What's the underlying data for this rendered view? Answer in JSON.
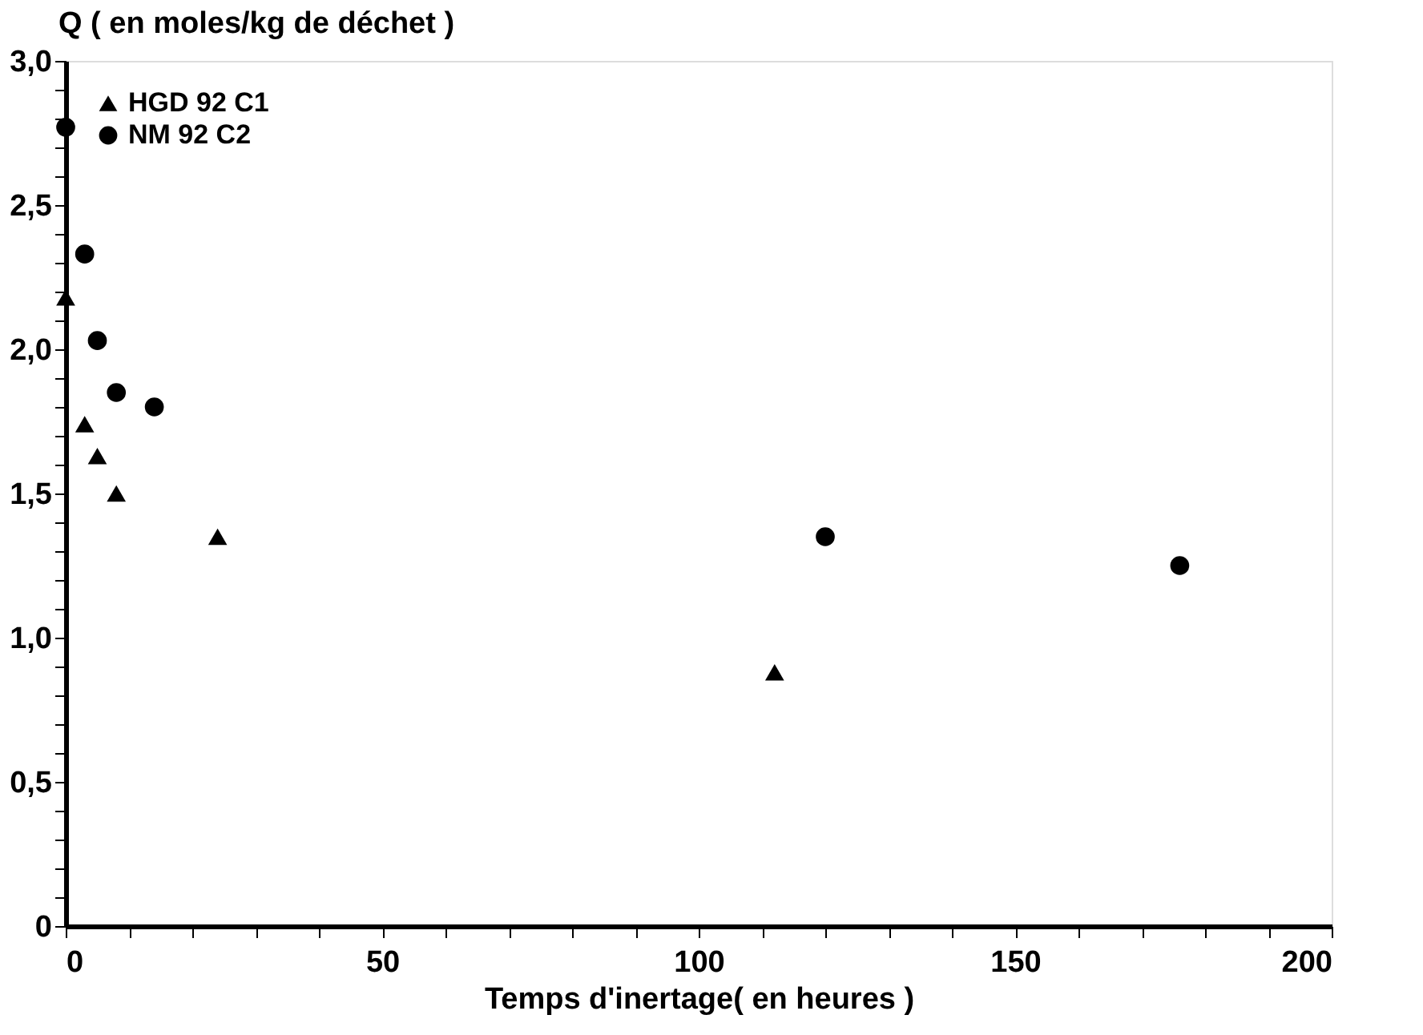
{
  "chart_data": {
    "type": "scatter",
    "xlabel": "Temps d'inertage( en heures )",
    "ylabel": "Q ( en moles/kg de déchet )",
    "series": [
      {
        "name": "HGD 92 C1",
        "color": "#000000",
        "marker": "triangle",
        "x": [
          0,
          3,
          5,
          8,
          24,
          112
        ],
        "values": [
          2.18,
          1.74,
          1.63,
          1.5,
          1.35,
          0.88
        ]
      },
      {
        "name": "NM 92 C2",
        "color": "#000000",
        "marker": "circle",
        "x": [
          0,
          3,
          5,
          8,
          14,
          120,
          176
        ],
        "values": [
          2.77,
          2.33,
          2.03,
          1.85,
          1.8,
          1.35,
          1.25
        ]
      }
    ],
    "xlim": [
      0,
      200
    ],
    "ylim": [
      0,
      3
    ],
    "xticks": [
      0,
      {
        "value": 10,
        "label": null
      },
      {
        "value": 20,
        "label": null
      },
      {
        "value": 30,
        "label": null
      },
      {
        "value": 40,
        "label": null
      },
      50,
      {
        "value": 60,
        "label": null
      },
      {
        "value": 70,
        "label": null
      },
      {
        "value": 80,
        "label": null
      },
      {
        "value": 90,
        "label": null
      },
      100,
      {
        "value": 110,
        "label": null
      },
      {
        "value": 120,
        "label": null
      },
      {
        "value": 130,
        "label": null
      },
      {
        "value": 140,
        "label": null
      },
      150,
      {
        "value": 160,
        "label": null
      },
      {
        "value": 170,
        "label": null
      },
      {
        "value": 180,
        "label": null
      },
      {
        "value": 190,
        "label": null
      },
      200
    ],
    "yticks": [
      0,
      {
        "value": 0.1,
        "label": null
      },
      {
        "value": 0.2,
        "label": null
      },
      {
        "value": 0.3,
        "label": null
      },
      {
        "value": 0.4,
        "label": null
      },
      {
        "value": 0.5,
        "label": "0,5"
      },
      {
        "value": 0.6,
        "label": null
      },
      {
        "value": 0.7,
        "label": null
      },
      {
        "value": 0.8,
        "label": null
      },
      {
        "value": 0.9,
        "label": null
      },
      {
        "value": 1.0,
        "label": "1,0"
      },
      {
        "value": 1.1,
        "label": null
      },
      {
        "value": 1.2,
        "label": null
      },
      {
        "value": 1.3,
        "label": null
      },
      {
        "value": 1.4,
        "label": null
      },
      {
        "value": 1.5,
        "label": "1,5"
      },
      {
        "value": 1.6,
        "label": null
      },
      {
        "value": 1.7,
        "label": null
      },
      {
        "value": 1.8,
        "label": null
      },
      {
        "value": 1.9,
        "label": null
      },
      {
        "value": 2.0,
        "label": "2,0"
      },
      {
        "value": 2.1,
        "label": null
      },
      {
        "value": 2.2,
        "label": null
      },
      {
        "value": 2.3,
        "label": null
      },
      {
        "value": 2.4,
        "label": null
      },
      {
        "value": 2.5,
        "label": "2,5"
      },
      {
        "value": 2.6,
        "label": null
      },
      {
        "value": 2.7,
        "label": null
      },
      {
        "value": 2.8,
        "label": null
      },
      {
        "value": 2.9,
        "label": null
      },
      {
        "value": 3.0,
        "label": "3,0"
      }
    ],
    "grid": false,
    "legend": "top left"
  }
}
